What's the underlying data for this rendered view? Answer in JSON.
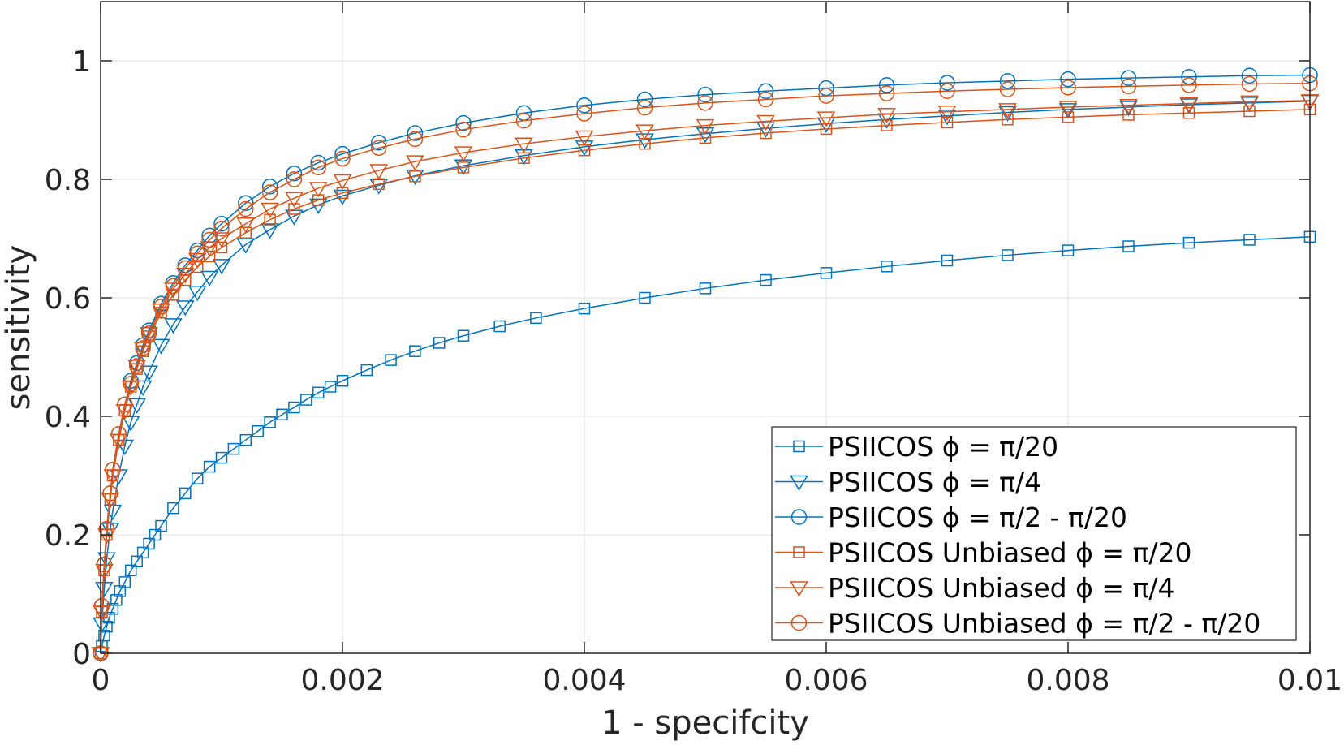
{
  "chart_data": {
    "type": "line",
    "title": "",
    "xlabel": "1 - specifcity",
    "ylabel": "sensitivity",
    "xlim": [
      0,
      0.01
    ],
    "ylim": [
      0,
      1.1
    ],
    "xticks": [
      0,
      0.002,
      0.004,
      0.006,
      0.008,
      0.01
    ],
    "xtick_labels": [
      "0",
      "0.002",
      "0.004",
      "0.006",
      "0.008",
      "0.01"
    ],
    "yticks": [
      0,
      0.2,
      0.4,
      0.6,
      0.8,
      1
    ],
    "ytick_labels": [
      "0",
      "0.2",
      "0.4",
      "0.6",
      "0.8",
      "1"
    ],
    "grid": true,
    "legend_position": "bottom-right",
    "colors": {
      "blue": "#0072BD",
      "orange": "#D95319",
      "axis": "#262626",
      "grid": "#e6e6e6"
    },
    "series": [
      {
        "name": "PSIICOS ϕ = π/20",
        "color": "#0072BD",
        "marker": "square",
        "x": [
          0,
          1e-05,
          3e-05,
          5e-05,
          7e-05,
          0.0001,
          0.00013,
          0.00016,
          0.0002,
          0.00025,
          0.0003,
          0.00035,
          0.0004,
          0.00045,
          0.0005,
          0.0006,
          0.0007,
          0.0008,
          0.0009,
          0.001,
          0.0011,
          0.0012,
          0.0013,
          0.0014,
          0.0015,
          0.0016,
          0.0017,
          0.0018,
          0.0019,
          0.002,
          0.0022,
          0.0024,
          0.0026,
          0.0028,
          0.003,
          0.0033,
          0.0036,
          0.004,
          0.0045,
          0.005,
          0.0055,
          0.006,
          0.0065,
          0.007,
          0.0075,
          0.008,
          0.0085,
          0.009,
          0.0095,
          0.01
        ],
        "y": [
          0,
          0.012,
          0.03,
          0.045,
          0.06,
          0.075,
          0.09,
          0.105,
          0.12,
          0.14,
          0.155,
          0.17,
          0.185,
          0.2,
          0.215,
          0.245,
          0.27,
          0.295,
          0.315,
          0.33,
          0.345,
          0.36,
          0.375,
          0.39,
          0.403,
          0.415,
          0.428,
          0.44,
          0.45,
          0.46,
          0.478,
          0.495,
          0.51,
          0.524,
          0.536,
          0.552,
          0.566,
          0.582,
          0.6,
          0.616,
          0.63,
          0.642,
          0.653,
          0.663,
          0.672,
          0.68,
          0.687,
          0.693,
          0.698,
          0.703
        ]
      },
      {
        "name": "PSIICOS ϕ = π/4",
        "color": "#0072BD",
        "marker": "triangle-down",
        "x": [
          0,
          1e-05,
          3e-05,
          5e-05,
          8e-05,
          0.0001,
          0.00015,
          0.0002,
          0.00025,
          0.0003,
          0.00035,
          0.0004,
          0.0005,
          0.0006,
          0.0007,
          0.0008,
          0.0009,
          0.001,
          0.0012,
          0.0014,
          0.0016,
          0.0018,
          0.002,
          0.0023,
          0.0026,
          0.003,
          0.0035,
          0.004,
          0.0045,
          0.005,
          0.0055,
          0.006,
          0.0065,
          0.007,
          0.0075,
          0.008,
          0.0085,
          0.009,
          0.0095,
          0.01
        ],
        "y": [
          0,
          0.05,
          0.11,
          0.16,
          0.21,
          0.24,
          0.3,
          0.35,
          0.39,
          0.42,
          0.45,
          0.475,
          0.52,
          0.555,
          0.585,
          0.61,
          0.635,
          0.655,
          0.69,
          0.715,
          0.738,
          0.757,
          0.772,
          0.79,
          0.806,
          0.823,
          0.84,
          0.855,
          0.867,
          0.877,
          0.886,
          0.894,
          0.901,
          0.907,
          0.913,
          0.918,
          0.922,
          0.926,
          0.929,
          0.932
        ]
      },
      {
        "name": "PSIICOS ϕ = π/2 - π/20",
        "color": "#0072BD",
        "marker": "circle",
        "x": [
          0,
          1e-05,
          3e-05,
          5e-05,
          8e-05,
          0.0001,
          0.00015,
          0.0002,
          0.00025,
          0.0003,
          0.00035,
          0.0004,
          0.0005,
          0.0006,
          0.0007,
          0.0008,
          0.0009,
          0.001,
          0.0012,
          0.0014,
          0.0016,
          0.0018,
          0.002,
          0.0023,
          0.0026,
          0.003,
          0.0035,
          0.004,
          0.0045,
          0.005,
          0.0055,
          0.006,
          0.0065,
          0.007,
          0.0075,
          0.008,
          0.0085,
          0.009,
          0.0095,
          0.01
        ],
        "y": [
          0,
          0.08,
          0.15,
          0.21,
          0.27,
          0.31,
          0.37,
          0.42,
          0.46,
          0.49,
          0.52,
          0.545,
          0.59,
          0.625,
          0.655,
          0.68,
          0.705,
          0.725,
          0.76,
          0.788,
          0.81,
          0.828,
          0.843,
          0.862,
          0.878,
          0.895,
          0.912,
          0.925,
          0.935,
          0.943,
          0.949,
          0.954,
          0.959,
          0.963,
          0.966,
          0.969,
          0.971,
          0.973,
          0.975,
          0.976
        ]
      },
      {
        "name": "PSIICOS Unbiased ϕ = π/20",
        "color": "#D95319",
        "marker": "square",
        "x": [
          0,
          1e-05,
          3e-05,
          5e-05,
          8e-05,
          0.0001,
          0.00015,
          0.0002,
          0.00025,
          0.0003,
          0.00035,
          0.0004,
          0.0005,
          0.0006,
          0.0007,
          0.0008,
          0.0009,
          0.001,
          0.0012,
          0.0014,
          0.0016,
          0.0018,
          0.002,
          0.0023,
          0.0026,
          0.003,
          0.0035,
          0.004,
          0.0045,
          0.005,
          0.0055,
          0.006,
          0.0065,
          0.007,
          0.0075,
          0.008,
          0.0085,
          0.009,
          0.0095,
          0.01
        ],
        "y": [
          0,
          0.07,
          0.14,
          0.2,
          0.26,
          0.3,
          0.36,
          0.41,
          0.45,
          0.48,
          0.51,
          0.535,
          0.575,
          0.605,
          0.63,
          0.652,
          0.67,
          0.685,
          0.71,
          0.732,
          0.75,
          0.765,
          0.777,
          0.792,
          0.805,
          0.82,
          0.836,
          0.849,
          0.86,
          0.87,
          0.878,
          0.885,
          0.891,
          0.896,
          0.901,
          0.905,
          0.909,
          0.912,
          0.915,
          0.918
        ]
      },
      {
        "name": "PSIICOS Unbiased ϕ = π/4",
        "color": "#D95319",
        "marker": "triangle-down",
        "x": [
          0,
          1e-05,
          3e-05,
          5e-05,
          8e-05,
          0.0001,
          0.00015,
          0.0002,
          0.00025,
          0.0003,
          0.00035,
          0.0004,
          0.0005,
          0.0006,
          0.0007,
          0.0008,
          0.0009,
          0.001,
          0.0012,
          0.0014,
          0.0016,
          0.0018,
          0.002,
          0.0023,
          0.0026,
          0.003,
          0.0035,
          0.004,
          0.0045,
          0.005,
          0.0055,
          0.006,
          0.0065,
          0.007,
          0.0075,
          0.008,
          0.0085,
          0.009,
          0.0095,
          0.01
        ],
        "y": [
          0,
          0.07,
          0.14,
          0.2,
          0.26,
          0.3,
          0.36,
          0.41,
          0.45,
          0.485,
          0.515,
          0.54,
          0.58,
          0.615,
          0.64,
          0.665,
          0.685,
          0.7,
          0.725,
          0.75,
          0.768,
          0.785,
          0.798,
          0.815,
          0.83,
          0.845,
          0.86,
          0.872,
          0.882,
          0.891,
          0.898,
          0.904,
          0.91,
          0.914,
          0.918,
          0.922,
          0.925,
          0.928,
          0.931,
          0.933
        ]
      },
      {
        "name": "PSIICOS Unbiased ϕ = π/2 - π/20",
        "color": "#D95319",
        "marker": "circle",
        "x": [
          0,
          1e-05,
          3e-05,
          5e-05,
          8e-05,
          0.0001,
          0.00015,
          0.0002,
          0.00025,
          0.0003,
          0.00035,
          0.0004,
          0.0005,
          0.0006,
          0.0007,
          0.0008,
          0.0009,
          0.001,
          0.0012,
          0.0014,
          0.0016,
          0.0018,
          0.002,
          0.0023,
          0.0026,
          0.003,
          0.0035,
          0.004,
          0.0045,
          0.005,
          0.0055,
          0.006,
          0.0065,
          0.007,
          0.0075,
          0.008,
          0.0085,
          0.009,
          0.0095,
          0.01
        ],
        "y": [
          0,
          0.08,
          0.15,
          0.21,
          0.27,
          0.31,
          0.37,
          0.42,
          0.455,
          0.485,
          0.515,
          0.54,
          0.585,
          0.62,
          0.65,
          0.675,
          0.698,
          0.717,
          0.75,
          0.778,
          0.8,
          0.82,
          0.835,
          0.853,
          0.868,
          0.884,
          0.899,
          0.911,
          0.921,
          0.929,
          0.935,
          0.941,
          0.945,
          0.949,
          0.952,
          0.955,
          0.957,
          0.959,
          0.961,
          0.962
        ]
      }
    ]
  }
}
